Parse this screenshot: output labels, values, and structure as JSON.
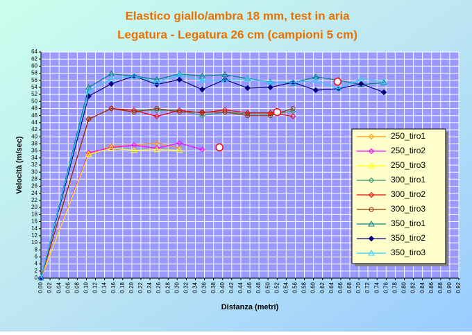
{
  "chart_data": {
    "type": "line",
    "title": "Elastico giallo/ambra 18 mm, test in aria",
    "subtitle": "Legatura - Legatura 26 cm (campioni 5 cm)",
    "x_label": "Distanza (metri)",
    "y_label": "Velocità (m/sec)",
    "x": [
      0,
      0.105,
      0.155,
      0.205,
      0.255,
      0.305,
      0.355,
      0.405,
      0.455,
      0.505,
      0.555,
      0.605,
      0.655,
      0.705,
      0.755
    ],
    "series": [
      {
        "name": "250_tiro1",
        "color": "#ff9900",
        "marker": "diamond",
        "values": [
          0,
          35.2,
          37.3,
          37.6,
          38.2,
          36.8,
          null,
          null,
          null,
          null,
          null,
          null,
          null,
          null,
          null
        ]
      },
      {
        "name": "250_tiro2",
        "color": "#ff00ff",
        "marker": "diamond",
        "values": [
          0,
          35.5,
          37,
          37.6,
          36.8,
          38.2,
          36.4,
          null,
          null,
          null,
          null,
          null,
          null,
          null,
          null
        ]
      },
      {
        "name": "250_tiro3",
        "color": "#ffff00",
        "marker": "triangle",
        "values": [
          0,
          35,
          36.8,
          36.2,
          36.4,
          36.2,
          null,
          null,
          null,
          null,
          null,
          null,
          null,
          null,
          null
        ]
      },
      {
        "name": "300_tiro1",
        "color": "#339966",
        "marker": "diamond",
        "values": [
          0,
          45,
          48,
          47.5,
          47.5,
          47.5,
          46,
          47,
          46.5,
          46.5,
          47.2,
          null,
          null,
          null,
          null
        ]
      },
      {
        "name": "300_tiro2",
        "color": "#ff0000",
        "marker": "diamond",
        "values": [
          0,
          45,
          48,
          47.5,
          45.8,
          47.5,
          46.8,
          47.6,
          46.8,
          46.8,
          45.8,
          null,
          null,
          null,
          null
        ]
      },
      {
        "name": "300_tiro3",
        "color": "#993300",
        "marker": "circle",
        "values": [
          0,
          45,
          48,
          47,
          48,
          47,
          47,
          47,
          46,
          46,
          48,
          null,
          null,
          null,
          null
        ]
      },
      {
        "name": "350_tiro1",
        "color": "#008080",
        "marker": "triangle",
        "values": [
          0,
          54,
          57.8,
          57.2,
          56.2,
          57.8,
          57.2,
          57.6,
          56.5,
          55.5,
          55.2,
          57,
          56,
          54.8,
          55.3
        ]
      },
      {
        "name": "350_tiro2",
        "color": "#000080",
        "marker": "diamond",
        "values": [
          0,
          51.5,
          55,
          57.2,
          54.8,
          56.2,
          53.4,
          56.2,
          53.8,
          54,
          55.4,
          53.2,
          53.6,
          55,
          52.6
        ]
      },
      {
        "name": "350_tiro3",
        "color": "#33ccff",
        "marker": "triangle",
        "values": [
          0,
          53,
          56.4,
          57.2,
          55.4,
          57.6,
          56,
          56,
          56.4,
          55.4,
          55.4,
          56,
          53.6,
          56.4,
          55.6
        ]
      }
    ],
    "highlights": {
      "color": "#ff0000",
      "x": [
        0.393,
        0.52,
        0.653
      ],
      "values": [
        37,
        47,
        55.6
      ]
    },
    "xlim": [
      0,
      0.92
    ],
    "xticks": [
      {
        "value": 0,
        "label": "0.00"
      },
      {
        "value": 0.02,
        "label": "0.02"
      },
      {
        "value": 0.04,
        "label": "0.04"
      },
      {
        "value": 0.06,
        "label": "0.06"
      },
      {
        "value": 0.08,
        "label": "0.08"
      },
      {
        "value": 0.1,
        "label": "0.10"
      },
      {
        "value": 0.12,
        "label": "0.12"
      },
      {
        "value": 0.14,
        "label": "0.14"
      },
      {
        "value": 0.16,
        "label": "0.16"
      },
      {
        "value": 0.18,
        "label": "0.18"
      },
      {
        "value": 0.2,
        "label": "0.20"
      },
      {
        "value": 0.22,
        "label": "0.22"
      },
      {
        "value": 0.24,
        "label": "0.24"
      },
      {
        "value": 0.26,
        "label": "0.26"
      },
      {
        "value": 0.28,
        "label": "0.28"
      },
      {
        "value": 0.3,
        "label": "0.30"
      },
      {
        "value": 0.32,
        "label": "0.32"
      },
      {
        "value": 0.34,
        "label": "0.34"
      },
      {
        "value": 0.36,
        "label": "0.36"
      },
      {
        "value": 0.38,
        "label": "0.38"
      },
      {
        "value": 0.4,
        "label": "0.40"
      },
      {
        "value": 0.42,
        "label": "0.42"
      },
      {
        "value": 0.44,
        "label": "0.44"
      },
      {
        "value": 0.46,
        "label": "0.46"
      },
      {
        "value": 0.48,
        "label": "0.48"
      },
      {
        "value": 0.5,
        "label": "0.50"
      },
      {
        "value": 0.52,
        "label": "0.52"
      },
      {
        "value": 0.54,
        "label": "0.54"
      },
      {
        "value": 0.56,
        "label": "0.56"
      },
      {
        "value": 0.58,
        "label": "0.58"
      },
      {
        "value": 0.6,
        "label": "0.60"
      },
      {
        "value": 0.62,
        "label": "0.62"
      },
      {
        "value": 0.64,
        "label": "0.64"
      },
      {
        "value": 0.66,
        "label": "0.66"
      },
      {
        "value": 0.68,
        "label": "0.68"
      },
      {
        "value": 0.7,
        "label": "0.70"
      },
      {
        "value": 0.72,
        "label": "0.72"
      },
      {
        "value": 0.74,
        "label": "0.74"
      },
      {
        "value": 0.76,
        "label": "0.76"
      },
      {
        "value": 0.78,
        "label": "0.78"
      },
      {
        "value": 0.8,
        "label": "0.80"
      },
      {
        "value": 0.82,
        "label": "0.82"
      },
      {
        "value": 0.84,
        "label": "0.84"
      },
      {
        "value": 0.86,
        "label": "0.86"
      },
      {
        "value": 0.88,
        "label": "0.88"
      },
      {
        "value": 0.9,
        "label": "0.90"
      },
      {
        "value": 0.92,
        "label": "0.92"
      }
    ],
    "ylim": [
      0,
      64
    ],
    "yticks": [
      0,
      2,
      4,
      6,
      8,
      10,
      12,
      14,
      16,
      18,
      20,
      22,
      24,
      26,
      28,
      30,
      32,
      34,
      36,
      38,
      40,
      42,
      44,
      46,
      48,
      50,
      52,
      54,
      56,
      58,
      60,
      62,
      64
    ],
    "grid": true,
    "legend": "right"
  }
}
